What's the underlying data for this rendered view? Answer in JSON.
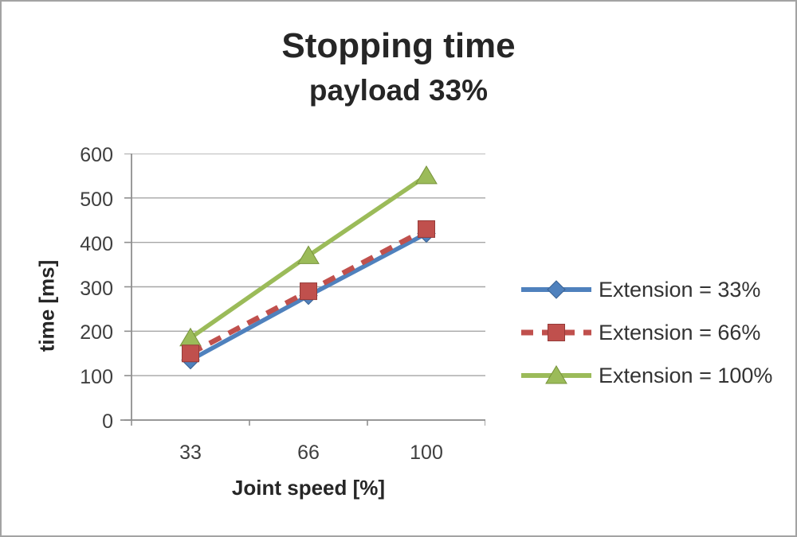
{
  "chart_data": {
    "type": "line",
    "title": "Stopping time",
    "subtitle": "payload 33%",
    "xlabel": "Joint speed [%]",
    "ylabel": "time [ms]",
    "categories": [
      "33",
      "66",
      "100"
    ],
    "x_values": [
      33,
      66,
      100
    ],
    "ylim": [
      0,
      600
    ],
    "ytick_interval": 100,
    "ytick_labels": [
      "600",
      "500",
      "400",
      "300",
      "200",
      "100",
      "0"
    ],
    "grid": "horizontal-only",
    "legend_position": "right",
    "series": [
      {
        "name": "Extension = 33%",
        "values": [
          135,
          280,
          420
        ],
        "color": "#4F81BD",
        "edge_color": "#3A6293",
        "marker": "diamond",
        "line_style": "solid"
      },
      {
        "name": "Extension = 66%",
        "values": [
          150,
          290,
          430
        ],
        "color": "#C0504D",
        "edge_color": "#953B39",
        "marker": "square",
        "line_style": "dashed"
      },
      {
        "name": "Extension = 100%",
        "values": [
          185,
          370,
          550
        ],
        "color": "#9BBB59",
        "edge_color": "#77933C",
        "marker": "triangle",
        "line_style": "solid"
      }
    ],
    "draw_order": [
      0,
      2,
      1
    ]
  },
  "colors": {
    "gridline": "#A6A6A6",
    "axis_line": "#8F8F8F",
    "title_text": "#262626",
    "tick_text": "#3F3F3F",
    "legend_text": "#333333",
    "background": "#FFFFFF",
    "border": "#A3A3A3"
  }
}
